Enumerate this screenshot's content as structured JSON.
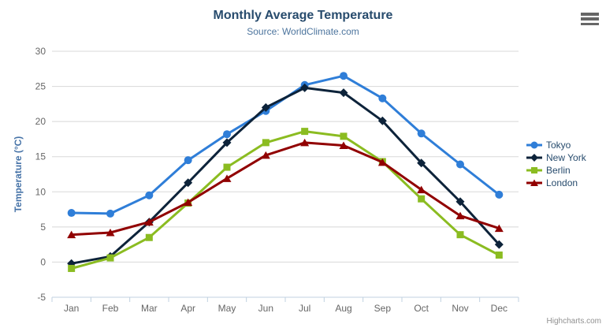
{
  "header": {
    "title": "Monthly Average Temperature",
    "subtitle": "Source: WorldClimate.com"
  },
  "menu": {
    "icon": "hamburger-icon"
  },
  "credits": {
    "label": "Highcharts.com"
  },
  "chart_data": {
    "type": "line",
    "title": "Monthly Average Temperature",
    "subtitle": "Source: WorldClimate.com",
    "categories": [
      "Jan",
      "Feb",
      "Mar",
      "Apr",
      "May",
      "Jun",
      "Jul",
      "Aug",
      "Sep",
      "Oct",
      "Nov",
      "Dec"
    ],
    "series": [
      {
        "name": "Tokyo",
        "color": "#2f7ed8",
        "marker": "circle",
        "values": [
          7.0,
          6.9,
          9.5,
          14.5,
          18.2,
          21.5,
          25.2,
          26.5,
          23.3,
          18.3,
          13.9,
          9.6
        ]
      },
      {
        "name": "New York",
        "color": "#0d233a",
        "marker": "diamond",
        "values": [
          -0.2,
          0.8,
          5.7,
          11.3,
          17.0,
          22.0,
          24.8,
          24.1,
          20.1,
          14.1,
          8.6,
          2.5
        ]
      },
      {
        "name": "Berlin",
        "color": "#8bbc21",
        "marker": "square",
        "values": [
          -0.9,
          0.6,
          3.5,
          8.4,
          13.5,
          17.0,
          18.6,
          17.9,
          14.3,
          9.0,
          3.9,
          1.0
        ]
      },
      {
        "name": "London",
        "color": "#910000",
        "marker": "triangle",
        "values": [
          3.9,
          4.2,
          5.7,
          8.5,
          11.9,
          15.2,
          17.0,
          16.6,
          14.2,
          10.3,
          6.6,
          4.8
        ]
      }
    ],
    "xlabel": "",
    "ylabel": "Temperature (°C)",
    "ylim": [
      -5,
      30
    ],
    "ytick_interval": 5,
    "grid": true,
    "legend_position": "right",
    "colors": {
      "grid": "#d8d8d8",
      "axis_line": "#c0d0e0",
      "axis_label": "#666666",
      "y_title": "#4572a7",
      "title": "#274b6d",
      "subtitle": "#4d759e",
      "legend_text": "#274b6d",
      "credits": "#909090"
    }
  }
}
